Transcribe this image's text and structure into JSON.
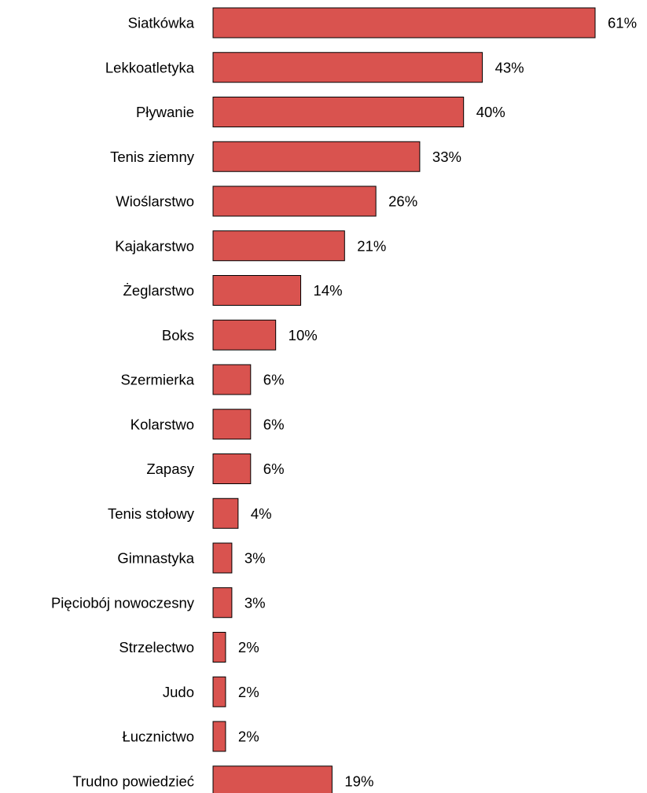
{
  "chart_data": {
    "type": "bar",
    "orientation": "horizontal",
    "categories": [
      "Siatkówka",
      "Lekkoatletyka",
      "Pływanie",
      "Tenis ziemny",
      "Wioślarstwo",
      "Kajakarstwo",
      "Żeglarstwo",
      "Boks",
      "Szermierka",
      "Kolarstwo",
      "Zapasy",
      "Tenis stołowy",
      "Gimnastyka",
      "Pięciobój nowoczesny",
      "Strzelectwo",
      "Judo",
      "Łucznictwo",
      "Trudno powiedzieć"
    ],
    "values": [
      61,
      43,
      40,
      33,
      26,
      21,
      14,
      10,
      6,
      6,
      6,
      4,
      3,
      3,
      2,
      2,
      2,
      19
    ],
    "value_labels": [
      "61%",
      "43%",
      "40%",
      "33%",
      "26%",
      "21%",
      "14%",
      "10%",
      "6%",
      "6%",
      "6%",
      "4%",
      "3%",
      "3%",
      "2%",
      "2%",
      "2%",
      "19%"
    ],
    "bar_color": "#d9534f",
    "xlim": [
      0,
      61
    ],
    "grid": false,
    "title": "",
    "xlabel": "",
    "ylabel": ""
  }
}
